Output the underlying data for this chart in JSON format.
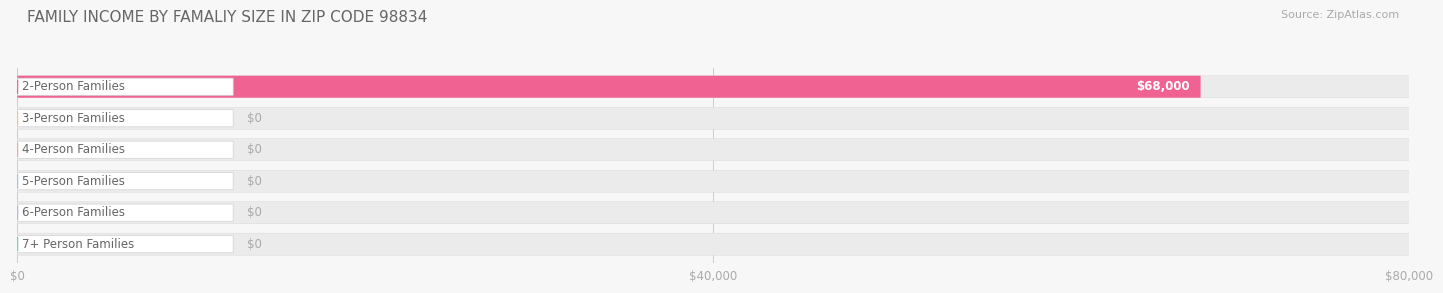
{
  "title": "FAMILY INCOME BY FAMALIY SIZE IN ZIP CODE 98834",
  "source": "Source: ZipAtlas.com",
  "categories": [
    "2-Person Families",
    "3-Person Families",
    "4-Person Families",
    "5-Person Families",
    "6-Person Families",
    "7+ Person Families"
  ],
  "values": [
    68000,
    0,
    0,
    0,
    0,
    0
  ],
  "bar_colors": [
    "#F06292",
    "#F5C18A",
    "#F4A8A0",
    "#AABFE8",
    "#C9ACDB",
    "#7ECDC4"
  ],
  "value_labels": [
    "$68,000",
    "$0",
    "$0",
    "$0",
    "$0",
    "$0"
  ],
  "xlim": [
    0,
    80000
  ],
  "xticks": [
    0,
    40000,
    80000
  ],
  "xticklabels": [
    "$0",
    "$40,000",
    "$80,000"
  ],
  "background_color": "#f7f7f7",
  "bar_bg_color": "#ebebeb",
  "title_fontsize": 11,
  "source_fontsize": 8,
  "bar_height": 0.7,
  "bar_label_fontsize": 8.5,
  "value_label_fontsize": 8.5
}
